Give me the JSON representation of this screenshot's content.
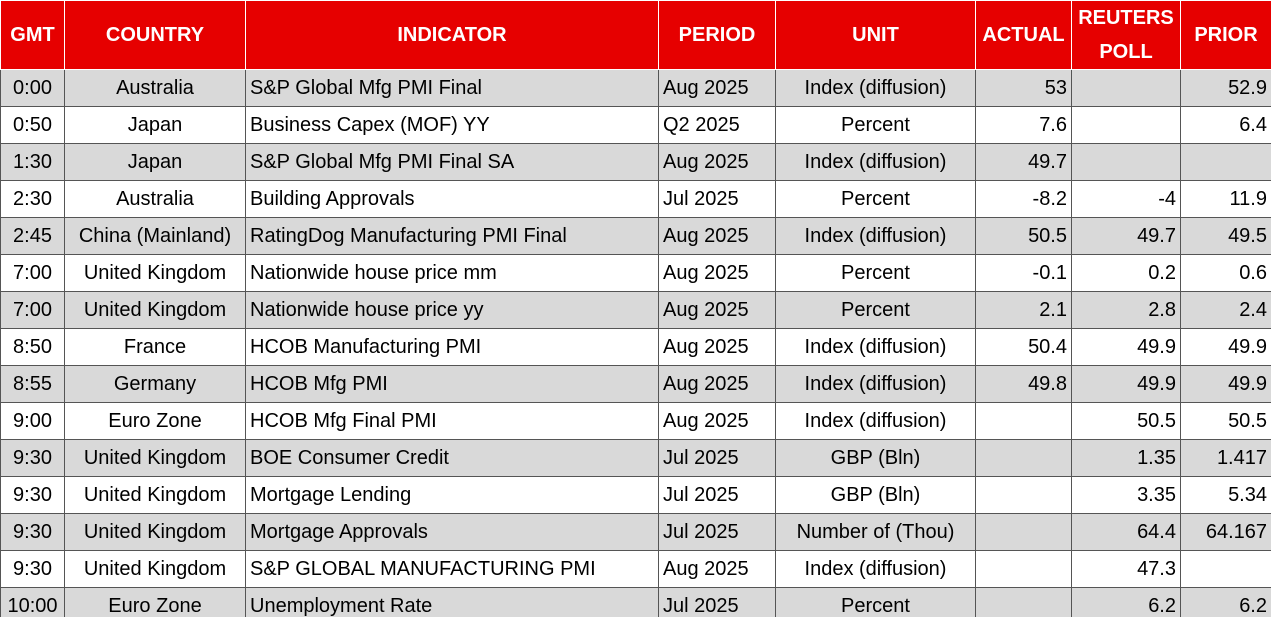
{
  "table": {
    "columns": [
      "GMT",
      "COUNTRY",
      "INDICATOR",
      "PERIOD",
      "UNIT",
      "ACTUAL",
      "REUTERS POLL",
      "PRIOR"
    ],
    "rows": [
      [
        "0:00",
        "Australia",
        "S&P Global Mfg PMI Final",
        "Aug 2025",
        "Index (diffusion)",
        "53",
        null,
        "52.9"
      ],
      [
        "0:50",
        "Japan",
        "Business Capex (MOF) YY",
        "Q2 2025",
        "Percent",
        "7.6",
        null,
        "6.4"
      ],
      [
        "1:30",
        "Japan",
        "S&P Global Mfg PMI Final SA",
        "Aug 2025",
        "Index (diffusion)",
        "49.7",
        null,
        null
      ],
      [
        "2:30",
        "Australia",
        "Building Approvals",
        "Jul 2025",
        "Percent",
        "-8.2",
        "-4",
        "11.9"
      ],
      [
        "2:45",
        "China (Mainland)",
        "RatingDog Manufacturing PMI Final",
        "Aug 2025",
        "Index (diffusion)",
        "50.5",
        "49.7",
        "49.5"
      ],
      [
        "7:00",
        "United Kingdom",
        "Nationwide house price mm",
        "Aug 2025",
        "Percent",
        "-0.1",
        "0.2",
        "0.6"
      ],
      [
        "7:00",
        "United Kingdom",
        "Nationwide house price yy",
        "Aug 2025",
        "Percent",
        "2.1",
        "2.8",
        "2.4"
      ],
      [
        "8:50",
        "France",
        "HCOB Manufacturing PMI",
        "Aug 2025",
        "Index (diffusion)",
        "50.4",
        "49.9",
        "49.9"
      ],
      [
        "8:55",
        "Germany",
        "HCOB Mfg PMI",
        "Aug 2025",
        "Index (diffusion)",
        "49.8",
        "49.9",
        "49.9"
      ],
      [
        "9:00",
        "Euro Zone",
        "HCOB Mfg Final PMI",
        "Aug 2025",
        "Index (diffusion)",
        null,
        "50.5",
        "50.5"
      ],
      [
        "9:30",
        "United Kingdom",
        "BOE Consumer Credit",
        "Jul 2025",
        "GBP (Bln)",
        null,
        "1.35",
        "1.417"
      ],
      [
        "9:30",
        "United Kingdom",
        "Mortgage Lending",
        "Jul 2025",
        "GBP (Bln)",
        null,
        "3.35",
        "5.34"
      ],
      [
        "9:30",
        "United Kingdom",
        "Mortgage Approvals",
        "Jul 2025",
        "Number of (Thou)",
        null,
        "64.4",
        "64.167"
      ],
      [
        "9:30",
        "United Kingdom",
        "S&P GLOBAL MANUFACTURING PMI",
        "Aug 2025",
        "Index (diffusion)",
        null,
        "47.3",
        null
      ],
      [
        "10:00",
        "Euro Zone",
        "Unemployment Rate",
        "Jul 2025",
        "Percent",
        null,
        "6.2",
        "6.2"
      ]
    ]
  }
}
